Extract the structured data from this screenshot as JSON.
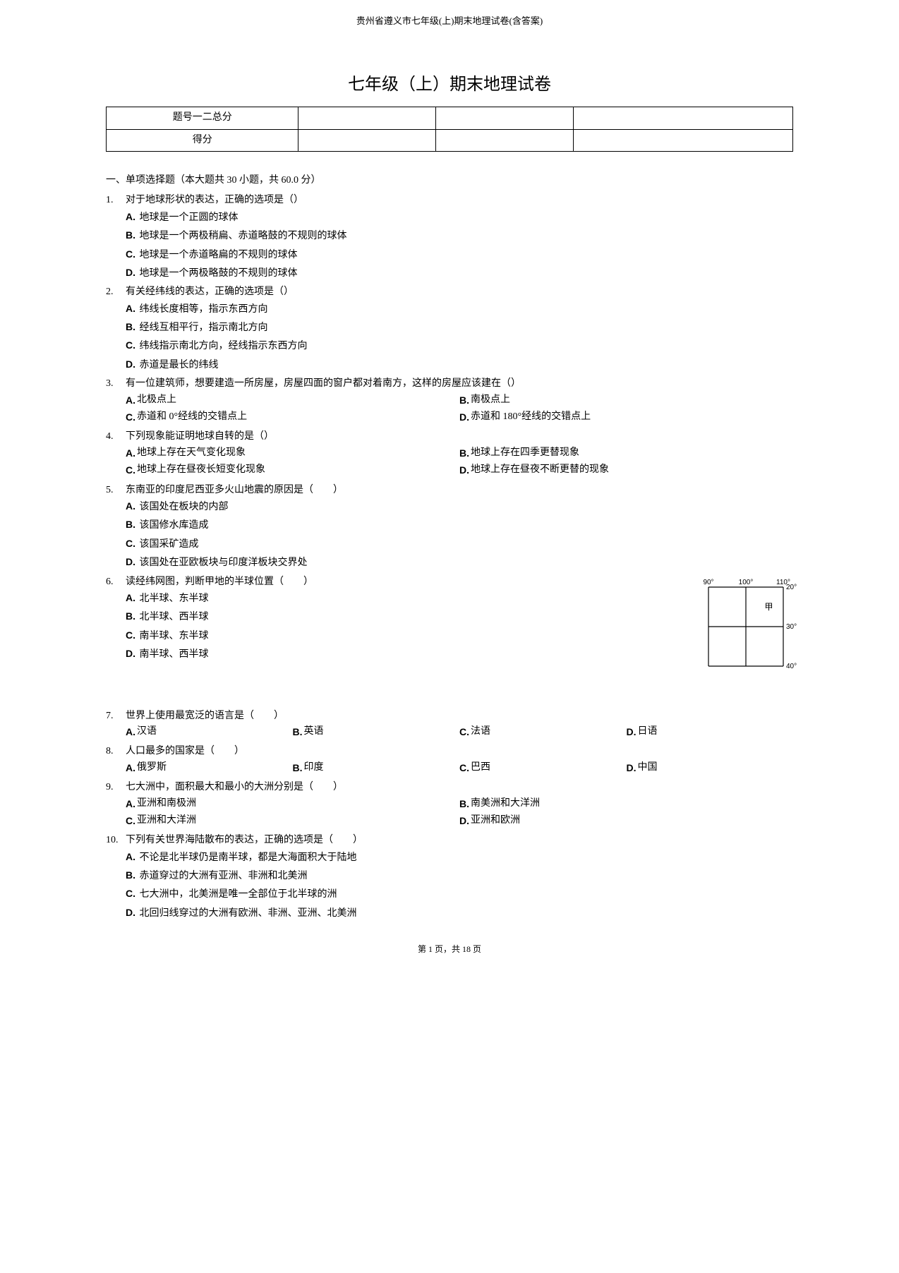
{
  "header_note": "贵州省遵义市七年级(上)期末地理试卷(含答案)",
  "title": "七年级（上）期末地理试卷",
  "score_table": {
    "row1_label": "题号一二总分",
    "row2_label": "得分"
  },
  "section_header": "一、单项选择题（本大题共 30 小题，共 60.0 分）",
  "questions": [
    {
      "num": "1.",
      "stem": "对于地球形状的表达，正确的选项是（）",
      "layout": "vertical",
      "opts": [
        {
          "l": "A.",
          "t": "地球是一个正圆的球体"
        },
        {
          "l": "B.",
          "t": "地球是一个两极稍扁、赤道略鼓的不规则的球体"
        },
        {
          "l": "C.",
          "t": "地球是一个赤道略扁的不规则的球体"
        },
        {
          "l": "D.",
          "t": "地球是一个两极略鼓的不规则的球体"
        }
      ]
    },
    {
      "num": "2.",
      "stem": "有关经纬线的表达，正确的选项是（）",
      "layout": "vertical",
      "opts": [
        {
          "l": "A.",
          "t": "纬线长度相等，指示东西方向"
        },
        {
          "l": "B.",
          "t": "经线互相平行，指示南北方向"
        },
        {
          "l": "C.",
          "t": "纬线指示南北方向，经线指示东西方向"
        },
        {
          "l": "D.",
          "t": "赤道是最长的纬线"
        }
      ]
    },
    {
      "num": "3.",
      "stem": "有一位建筑师，想要建造一所房屋，房屋四面的窗户都对着南方，这样的房屋应该建在（）",
      "layout": "two-col",
      "opts": [
        {
          "l": "A.",
          "t": "北极点上"
        },
        {
          "l": "B.",
          "t": "南极点上"
        },
        {
          "l": "C.",
          "t": "赤道和 0°经线的交错点上"
        },
        {
          "l": "D.",
          "t": "赤道和 180°经线的交错点上"
        }
      ]
    },
    {
      "num": "4.",
      "stem": "下列现象能证明地球自转的是（）",
      "layout": "two-col",
      "opts": [
        {
          "l": "A.",
          "t": "地球上存在天气变化现象"
        },
        {
          "l": "B.",
          "t": "地球上存在四季更替现象"
        },
        {
          "l": "C.",
          "t": "地球上存在昼夜长短变化现象"
        },
        {
          "l": "D.",
          "t": "地球上存在昼夜不断更替的现象"
        }
      ]
    },
    {
      "num": "5.",
      "stem": "东南亚的印度尼西亚多火山地震的原因是（　　）",
      "layout": "vertical",
      "opts": [
        {
          "l": "A.",
          "t": "该国处在板块的内部"
        },
        {
          "l": "B.",
          "t": "该国修水库造成"
        },
        {
          "l": "C.",
          "t": "该国采矿造成"
        },
        {
          "l": "D.",
          "t": "该国处在亚欧板块与印度洋板块交界处"
        }
      ]
    },
    {
      "num": "6.",
      "stem": "读经纬网图，判断甲地的半球位置（　　）",
      "layout": "vertical",
      "has_figure": true,
      "opts": [
        {
          "l": "A.",
          "t": "北半球、东半球"
        },
        {
          "l": "B.",
          "t": "北半球、西半球"
        },
        {
          "l": "C.",
          "t": "南半球、东半球"
        },
        {
          "l": "D.",
          "t": "南半球、西半球"
        }
      ]
    },
    {
      "num": "7.",
      "stem": "世界上使用最宽泛的语言是（　　）",
      "layout": "four-col",
      "opts": [
        {
          "l": "A.",
          "t": "汉语"
        },
        {
          "l": "B.",
          "t": "英语"
        },
        {
          "l": "C.",
          "t": "法语"
        },
        {
          "l": "D.",
          "t": "日语"
        }
      ]
    },
    {
      "num": "8.",
      "stem": "人口最多的国家是（　　）",
      "layout": "four-col",
      "opts": [
        {
          "l": "A.",
          "t": "俄罗斯"
        },
        {
          "l": "B.",
          "t": "印度"
        },
        {
          "l": "C.",
          "t": "巴西"
        },
        {
          "l": "D.",
          "t": "中国"
        }
      ]
    },
    {
      "num": "9.",
      "stem": "七大洲中，面积最大和最小的大洲分别是（　　）",
      "layout": "two-col",
      "opts": [
        {
          "l": "A.",
          "t": "亚洲和南极洲"
        },
        {
          "l": "B.",
          "t": "南美洲和大洋洲"
        },
        {
          "l": "C.",
          "t": "亚洲和大洋洲"
        },
        {
          "l": "D.",
          "t": "亚洲和欧洲"
        }
      ]
    },
    {
      "num": "10.",
      "stem": "下列有关世界海陆散布的表达，正确的选项是（　　）",
      "layout": "vertical",
      "opts": [
        {
          "l": "A.",
          "t": "不论是北半球仍是南半球，都是大海面积大于陆地"
        },
        {
          "l": "B.",
          "t": "赤道穿过的大洲有亚洲、非洲和北美洲"
        },
        {
          "l": "C.",
          "t": "七大洲中，北美洲是唯一全部位于北半球的洲"
        },
        {
          "l": "D.",
          "t": "北回归线穿过的大洲有欧洲、非洲、亚洲、北美洲"
        }
      ]
    }
  ],
  "grid_figure": {
    "lon_labels": [
      "90°",
      "100°",
      "110°"
    ],
    "lat_labels": [
      "20°",
      "30°",
      "40°"
    ],
    "marker_label": "甲",
    "width": 140,
    "height": 140,
    "line_color": "#000000",
    "font_size": 10
  },
  "footer": "第 1 页，共 18 页"
}
